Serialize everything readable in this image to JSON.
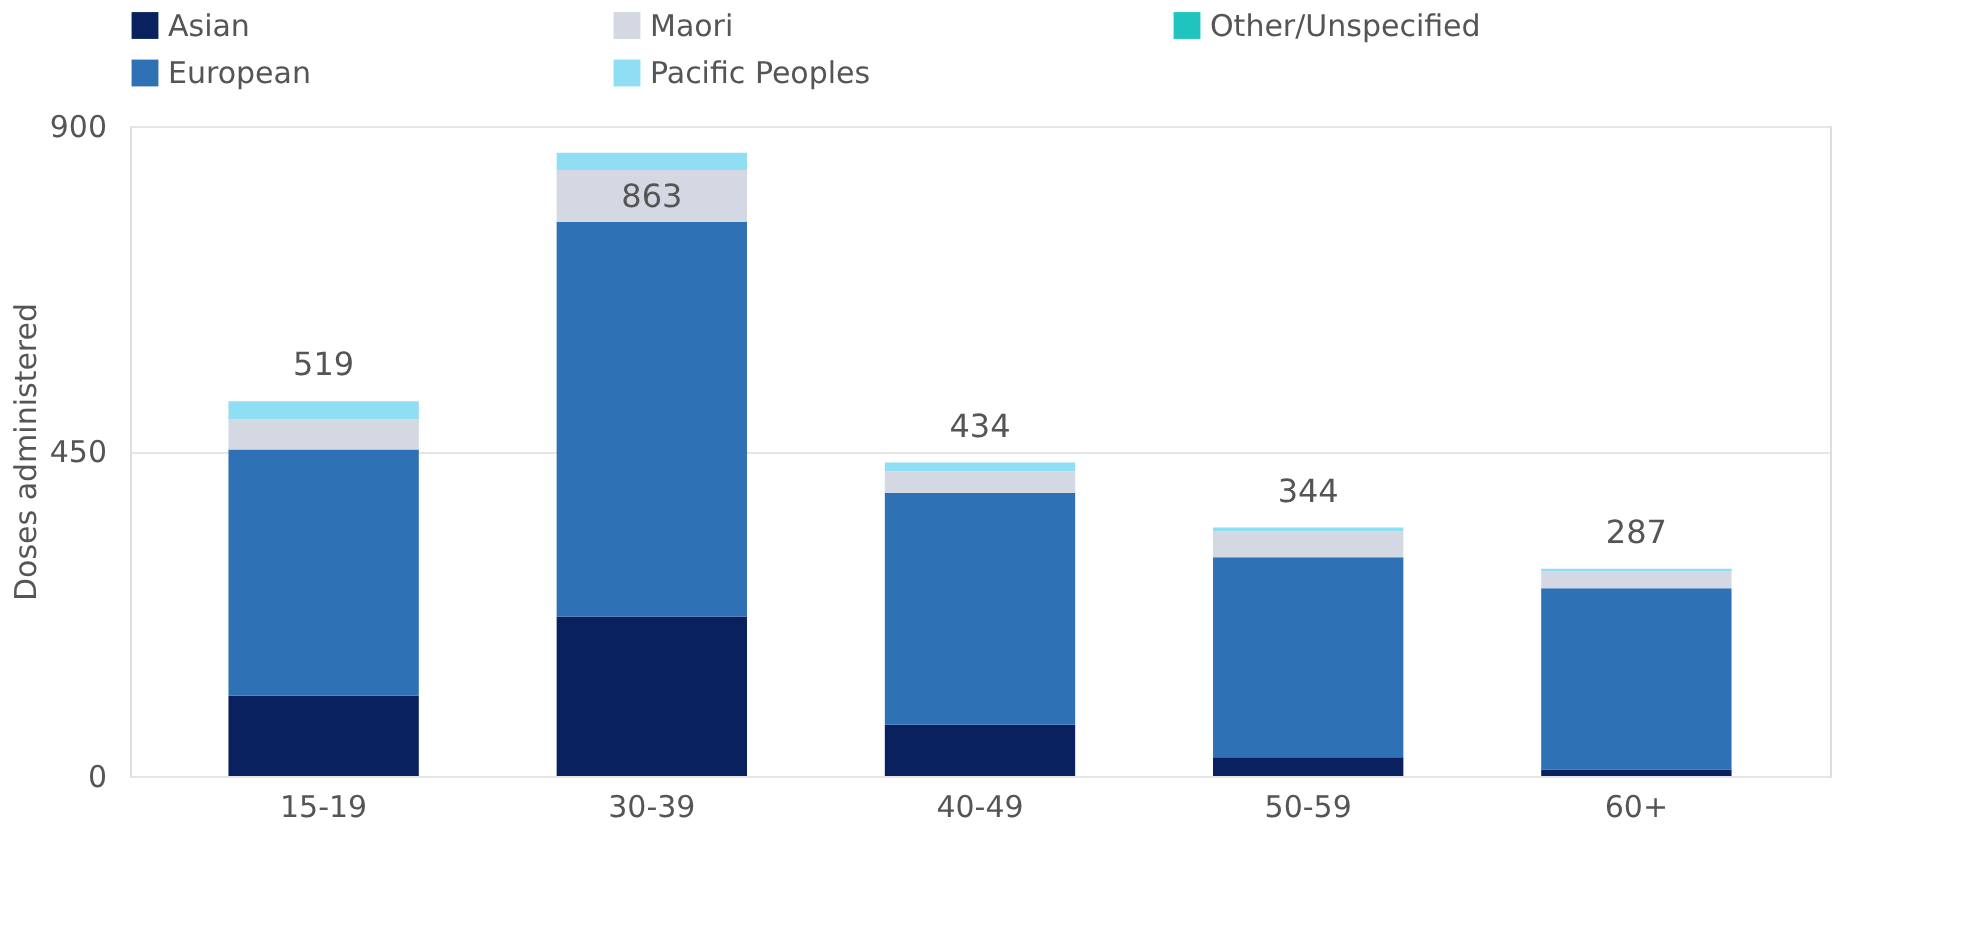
{
  "chart_data": {
    "type": "bar",
    "stacked": true,
    "ylabel": "Doses administered",
    "categories": [
      "15-19",
      "30-39",
      "40-49",
      "50-59",
      "60+"
    ],
    "series": [
      {
        "name": "Asian",
        "color": "#0a2160",
        "values": [
          111,
          221,
          71,
          26,
          9
        ]
      },
      {
        "name": "European",
        "color": "#2e72b5",
        "values": [
          341,
          546,
          321,
          277,
          251
        ]
      },
      {
        "name": "Maori",
        "color": "#d3d8e2",
        "values": [
          42,
          72,
          30,
          36,
          23
        ]
      },
      {
        "name": "Pacific Peoples",
        "color": "#90def3",
        "values": [
          25,
          24,
          12,
          5,
          4
        ]
      },
      {
        "name": "Other/Unspecified",
        "color": "#1ec4bd",
        "values": [
          0,
          0,
          0,
          0,
          0
        ]
      }
    ],
    "totals": [
      "519",
      "863",
      "434",
      "344",
      "287"
    ],
    "ylim": [
      0,
      900
    ],
    "yticks": [
      0,
      450,
      900
    ],
    "grid": "y",
    "legend": "top"
  }
}
